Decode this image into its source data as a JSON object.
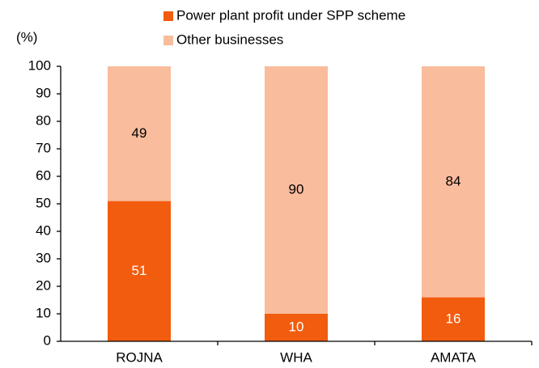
{
  "chart_data": {
    "type": "stacked_bar",
    "y_label": "(%)",
    "categories": [
      "ROJNA",
      "WHA",
      "AMATA"
    ],
    "series": [
      {
        "name": "Power plant profit under SPP scheme",
        "color": "#f25c0f",
        "values": [
          51,
          10,
          16
        ]
      },
      {
        "name": "Other businesses",
        "color": "#f9bc9c",
        "values": [
          49,
          90,
          84
        ]
      }
    ],
    "ylim": [
      0,
      100
    ],
    "yticks": [
      0,
      10,
      20,
      30,
      40,
      50,
      60,
      70,
      80,
      90,
      100
    ],
    "legend": "top"
  }
}
